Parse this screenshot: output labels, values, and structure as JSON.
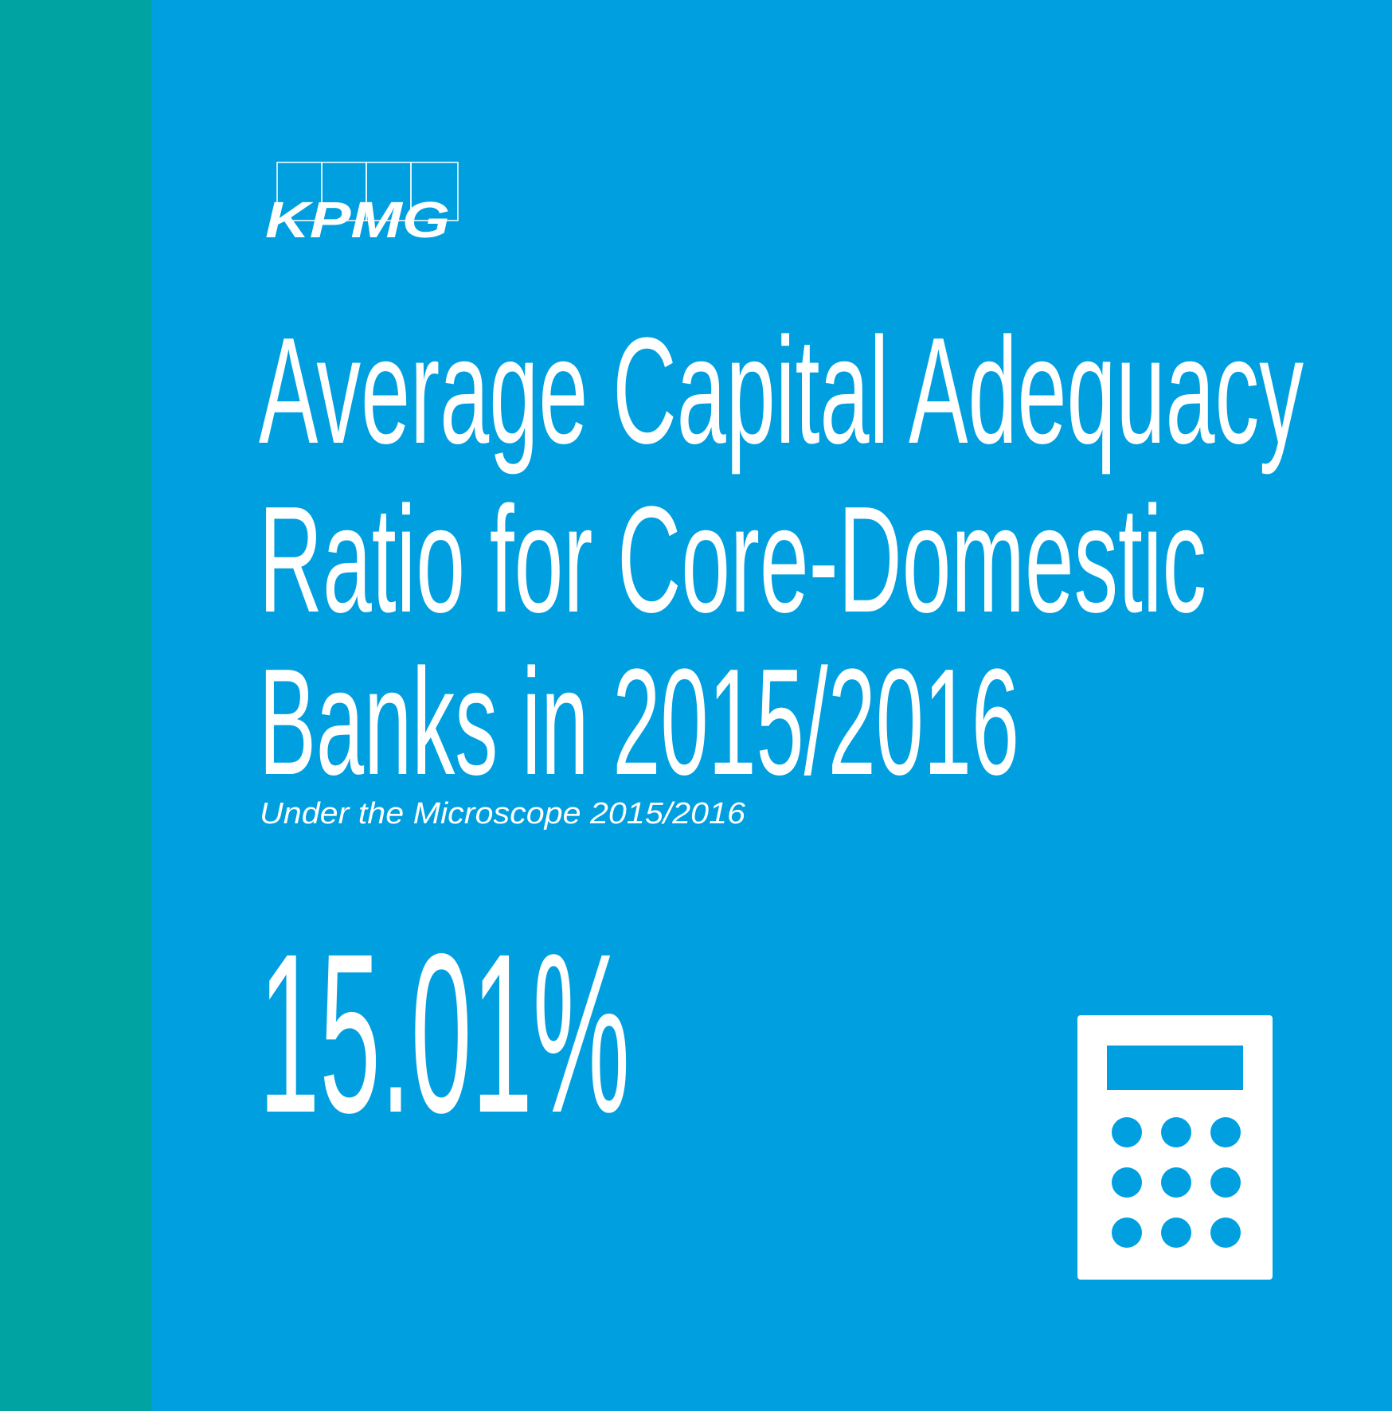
{
  "logo": "KPMG",
  "title": [
    "Average Capital Adequacy",
    "Ratio for Core-Domestic",
    "Banks in 2015/2016"
  ],
  "subtitle": "Under the Microscope 2015/2016",
  "stat": "15.01%"
}
